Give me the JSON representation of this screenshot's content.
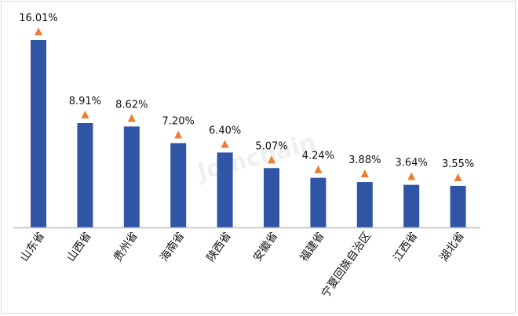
{
  "chart_data": {
    "type": "bar",
    "categories": [
      "山东省",
      "山西省",
      "贵州省",
      "海南省",
      "陕西省",
      "安徽省",
      "福建省",
      "宁夏回族自治区",
      "江西省",
      "湖北省"
    ],
    "values": [
      16.01,
      8.91,
      8.62,
      7.2,
      6.4,
      5.07,
      4.24,
      3.88,
      3.64,
      3.55
    ],
    "value_labels": [
      "16.01%",
      "8.91%",
      "8.62%",
      "7.20%",
      "6.40%",
      "5.07%",
      "4.24%",
      "3.88%",
      "3.64%",
      "3.55%"
    ],
    "title": "",
    "xlabel": "",
    "ylabel": "",
    "ylim": [
      0,
      16.01
    ],
    "grid": false,
    "marker": "triangle",
    "colors": {
      "bar": "#2f55a4",
      "marker": "#ed7d31",
      "axis": "#bfbfbf"
    },
    "watermark": "Joinchain"
  }
}
